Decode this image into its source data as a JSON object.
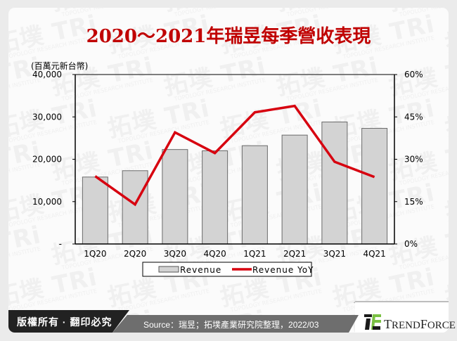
{
  "title": "2020～2021年瑞昱每季營收表現",
  "chart_data": {
    "type": "bar+line",
    "title": "2020～2021年瑞昱每季營收表現",
    "categories": [
      "1Q20",
      "2Q20",
      "3Q20",
      "4Q20",
      "1Q21",
      "2Q21",
      "3Q21",
      "4Q21"
    ],
    "series": [
      {
        "name": "Revenue",
        "type": "bar",
        "axis": "left",
        "color": "#d3d3d3",
        "values": [
          15800,
          17300,
          22300,
          22000,
          23200,
          25700,
          28800,
          27300
        ]
      },
      {
        "name": "Revenue YoY",
        "type": "line",
        "axis": "right",
        "color": "#d7000f",
        "values": [
          24.0,
          14.0,
          39.5,
          32.2,
          46.6,
          48.9,
          29.1,
          23.7
        ]
      }
    ],
    "ylabel": "(百萬元新台幣)",
    "ylim": [
      0,
      40000
    ],
    "y_ticks": [
      "-",
      "10,000",
      "20,000",
      "30,000",
      "40,000"
    ],
    "y2lim": [
      0,
      60
    ],
    "y2_ticks": [
      "0%",
      "15%",
      "30%",
      "45%",
      "60%"
    ],
    "legend_position": "bottom",
    "grid": false
  },
  "legend": {
    "revenue_label": "Revenue",
    "yoy_label": "Revenue YoY"
  },
  "footer": {
    "copyright": "版權所有 · 翻印必究",
    "source": "Source：瑞昱；拓墣產業研究院整理，2022/03",
    "brand": "TrendForce"
  },
  "watermark": {
    "brand_cn": "拓墣",
    "brand_en": "TRi",
    "tagline": "TOPOLOGY RESEARCH INSTITUTE"
  }
}
